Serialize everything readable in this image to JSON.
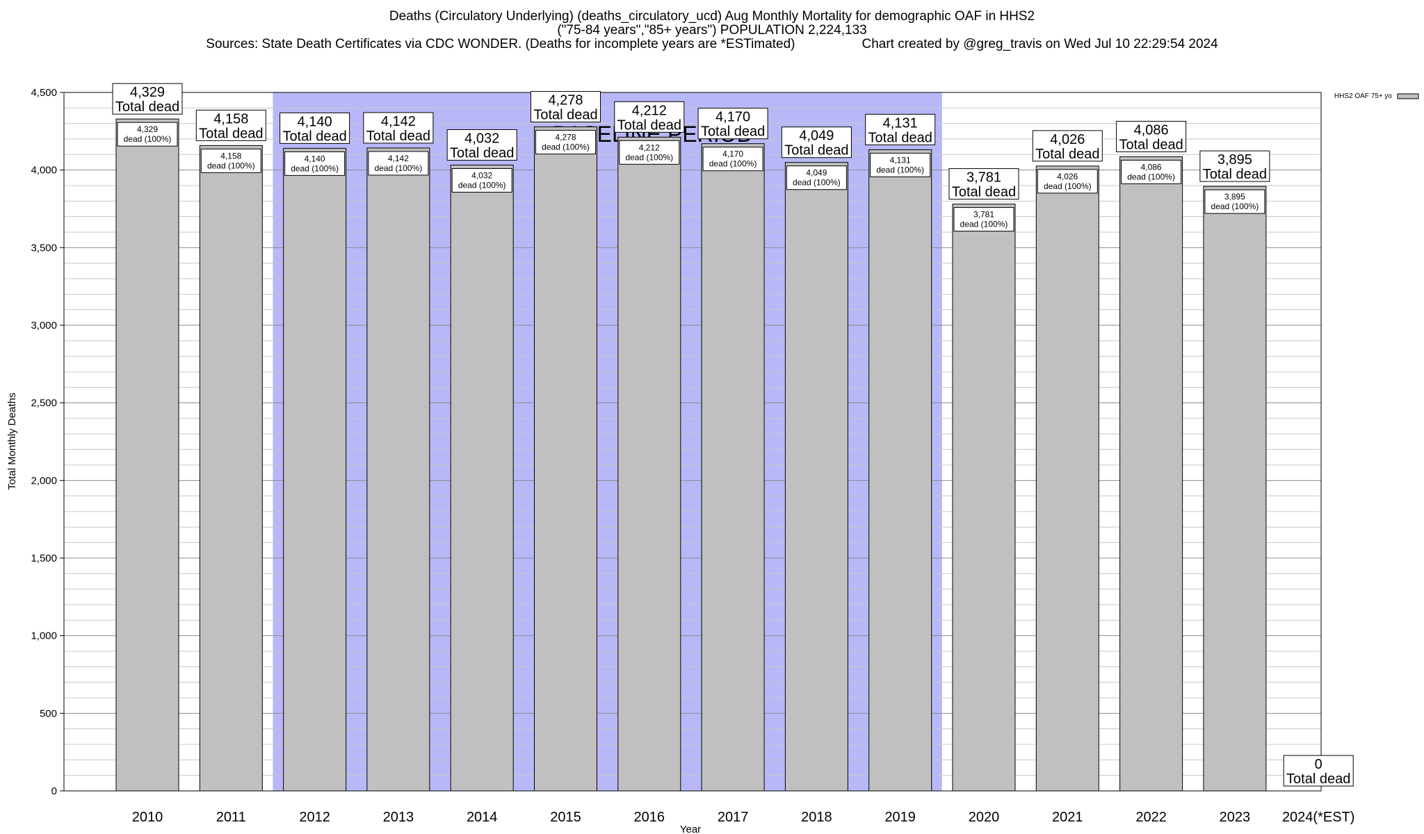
{
  "chart_data": {
    "type": "bar",
    "title": "Deaths (Circulatory Underlying) (deaths_circulatory_ucd) Aug Monthly Mortality for demographic OAF in HHS2",
    "subtitle": "(\"75-84 years\",\"85+ years\") POPULATION 2,224,133",
    "sources": "Sources: State Death Certificates via CDC WONDER. (Deaths for incomplete years are *ESTimated)",
    "credit": "Chart created by @greg_travis on Wed Jul 10 22:29:54 2024",
    "xlabel": "Year",
    "ylabel": "Total Monthly Deaths",
    "ylim": [
      0,
      4500
    ],
    "yticks": [
      0,
      500,
      1000,
      1500,
      2000,
      2500,
      3000,
      3500,
      4000,
      4500
    ],
    "ytick_labels": [
      "0",
      "500",
      "1,000",
      "1,500",
      "2,000",
      "2,500",
      "3,000",
      "3,500",
      "4,000",
      "4,500"
    ],
    "minor_grid_step": 100,
    "grid": true,
    "categories": [
      "2010",
      "2011",
      "2012",
      "2013",
      "2014",
      "2015",
      "2016",
      "2017",
      "2018",
      "2019",
      "2020",
      "2021",
      "2022",
      "2023",
      "2024(*EST)"
    ],
    "series": [
      {
        "name": "HHS2 OAF 75+ yo",
        "color": "#c0c0c0",
        "values": [
          4329,
          4158,
          4140,
          4142,
          4032,
          4278,
          4212,
          4170,
          4049,
          4131,
          3781,
          4026,
          4086,
          3895,
          0
        ],
        "value_labels": [
          "4,329",
          "4,158",
          "4,140",
          "4,142",
          "4,032",
          "4,278",
          "4,212",
          "4,170",
          "4,049",
          "4,131",
          "3,781",
          "4,026",
          "4,086",
          "3,895",
          "0"
        ],
        "inner_labels": [
          "4,329",
          "4,158",
          "4,140",
          "4,142",
          "4,032",
          "4,278",
          "4,212",
          "4,170",
          "4,049",
          "4,131",
          "3,781",
          "4,026",
          "4,086",
          "3,895",
          ""
        ],
        "inner_suffix": "dead (100%)"
      }
    ],
    "total_label": "Total dead",
    "baseline": {
      "label": "BASELINE PERIOD",
      "start": "2012",
      "end": "2019",
      "color": "#b8b8f8"
    },
    "legend": {
      "position": "top-right",
      "entries": [
        "HHS2 OAF 75+ yo"
      ]
    }
  }
}
